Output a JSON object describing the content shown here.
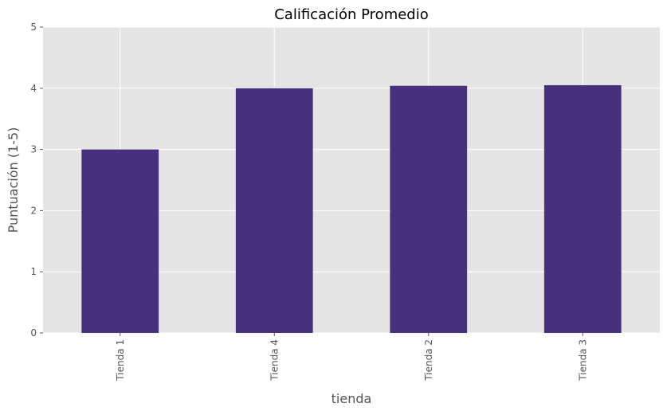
{
  "chart_data": {
    "type": "bar",
    "title": "Calificación Promedio",
    "xlabel": "tienda",
    "ylabel": "Puntuación (1-5)",
    "categories": [
      "Tienda 1",
      "Tienda 4",
      "Tienda 2",
      "Tienda 3"
    ],
    "values": [
      3.0,
      4.0,
      4.04,
      4.05
    ],
    "ylim": [
      0,
      5
    ],
    "yticks": [
      0,
      1,
      2,
      3,
      4,
      5
    ],
    "grid": true,
    "legend": "none",
    "colors": {
      "bar": "#46317c",
      "plot_background": "#e5e5e5",
      "grid": "#ffffff"
    }
  }
}
